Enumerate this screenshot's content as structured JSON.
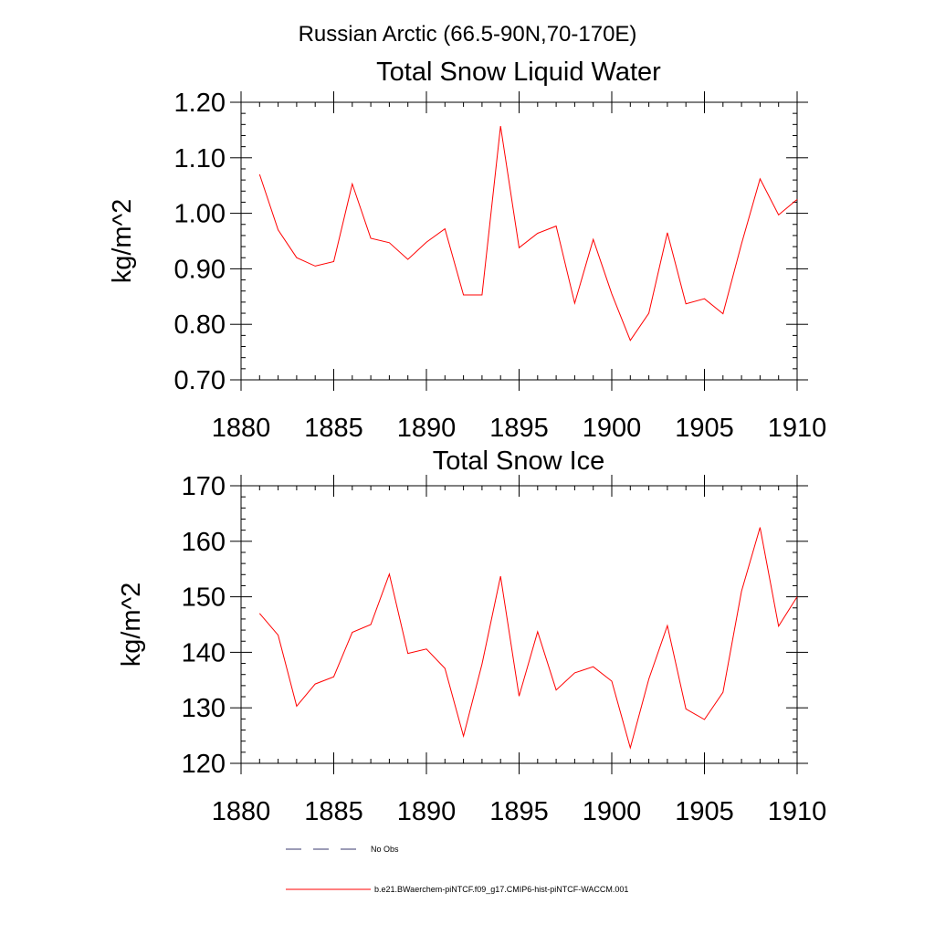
{
  "figure": {
    "suptitle": "Russian Arctic (66.5-90N,70-170E)"
  },
  "chart_data": [
    {
      "type": "line",
      "title": "Total Snow Liquid Water",
      "xlabel": "",
      "ylabel": "kg/m^2",
      "xlim": [
        1880,
        1910
      ],
      "ylim": [
        0.7,
        1.2
      ],
      "x_ticks": [
        1880,
        1885,
        1890,
        1895,
        1900,
        1905,
        1910
      ],
      "x_tick_labels": [
        "1880",
        "1885",
        "1890",
        "1895",
        "1900",
        "1905",
        "1910"
      ],
      "y_ticks": [
        0.7,
        0.8,
        0.9,
        1.0,
        1.1,
        1.2
      ],
      "y_tick_labels": [
        "0.70",
        "0.80",
        "0.90",
        "1.00",
        "1.10",
        "1.20"
      ],
      "grid": false,
      "series": [
        {
          "name": "b.e21.BWaerchem-piNTCF.f09_g17.CMIP6-hist-piNTCF-WACCM.001",
          "color": "#ff0000",
          "x": [
            1881,
            1882,
            1883,
            1884,
            1885,
            1886,
            1887,
            1888,
            1889,
            1890,
            1891,
            1892,
            1893,
            1894,
            1895,
            1896,
            1897,
            1898,
            1899,
            1900,
            1901,
            1902,
            1903,
            1904,
            1905,
            1906,
            1907,
            1908,
            1909,
            1910
          ],
          "values": [
            1.07,
            0.97,
            0.92,
            0.905,
            0.913,
            1.053,
            0.955,
            0.947,
            0.917,
            0.948,
            0.972,
            0.853,
            0.853,
            1.157,
            0.938,
            0.964,
            0.977,
            0.838,
            0.953,
            0.855,
            0.771,
            0.82,
            0.965,
            0.837,
            0.846,
            0.819,
            0.945,
            1.062,
            0.997,
            1.025
          ]
        }
      ]
    },
    {
      "type": "line",
      "title": "Total Snow Ice",
      "xlabel": "",
      "ylabel": "kg/m^2",
      "xlim": [
        1880,
        1910
      ],
      "ylim": [
        120,
        170
      ],
      "x_ticks": [
        1880,
        1885,
        1890,
        1895,
        1900,
        1905,
        1910
      ],
      "x_tick_labels": [
        "1880",
        "1885",
        "1890",
        "1895",
        "1900",
        "1905",
        "1910"
      ],
      "y_ticks": [
        120,
        130,
        140,
        150,
        160,
        170
      ],
      "y_tick_labels": [
        "120",
        "130",
        "140",
        "150",
        "160",
        "170"
      ],
      "grid": false,
      "series": [
        {
          "name": "b.e21.BWaerchem-piNTCF.f09_g17.CMIP6-hist-piNTCF-WACCM.001",
          "color": "#ff0000",
          "x": [
            1881,
            1882,
            1883,
            1884,
            1885,
            1886,
            1887,
            1888,
            1889,
            1890,
            1891,
            1892,
            1893,
            1894,
            1895,
            1896,
            1897,
            1898,
            1899,
            1900,
            1901,
            1902,
            1903,
            1904,
            1905,
            1906,
            1907,
            1908,
            1909,
            1910
          ],
          "values": [
            147,
            143.1,
            130.3,
            134.3,
            135.6,
            143.6,
            145,
            154.1,
            139.8,
            140.6,
            137.1,
            124.9,
            137.9,
            153.7,
            132.1,
            143.7,
            133.2,
            136.3,
            137.4,
            134.8,
            122.8,
            135.2,
            144.8,
            129.8,
            127.9,
            132.8,
            151,
            162.5,
            144.7,
            150
          ]
        }
      ]
    }
  ],
  "legend": {
    "position": "bottom-center",
    "entries": [
      {
        "label": "No Obs",
        "style": "dashed",
        "color": "#3a3a6e"
      },
      {
        "label": "b.e21.BWaerchem-piNTCF.f09_g17.CMIP6-hist-piNTCF-WACCM.001",
        "style": "solid",
        "color": "#ff0000"
      }
    ]
  }
}
